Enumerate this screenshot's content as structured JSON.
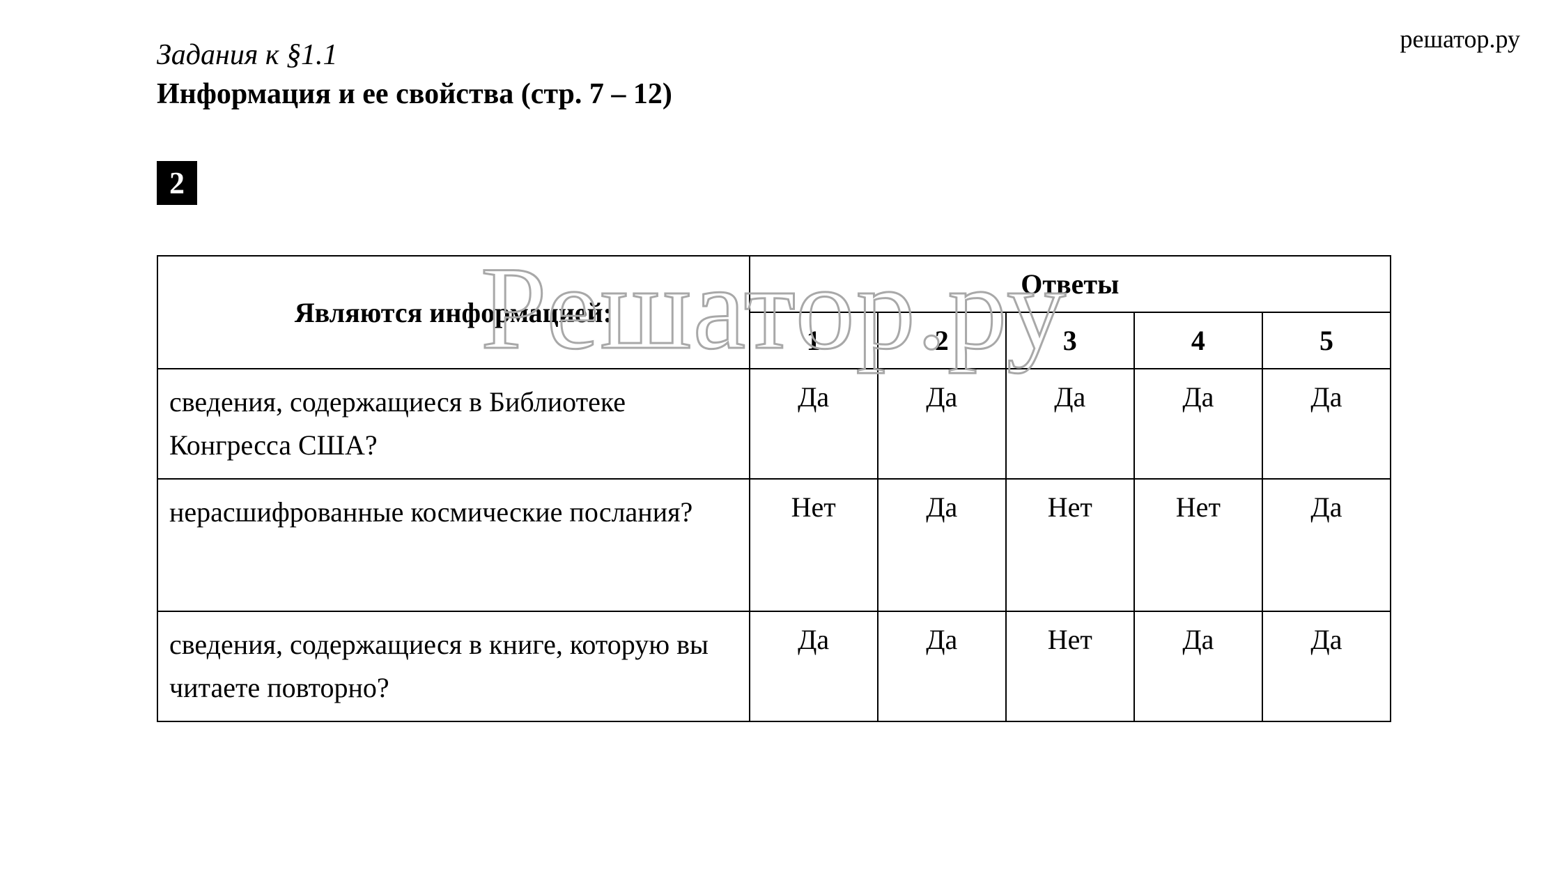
{
  "watermark_top": "решатор.ру",
  "watermark_center": "Решатор.ру",
  "section_title": "Задания к §1.1",
  "main_title": "Информация и ее свойства (стр. 7 – 12)",
  "task_number": "2",
  "table": {
    "header_question": "Являются информацией:",
    "header_answers": "Ответы",
    "columns": [
      "1",
      "2",
      "3",
      "4",
      "5"
    ],
    "rows": [
      {
        "question": "сведения, содержащиеся в Библиотеке Конгресса США?",
        "answers": [
          "Да",
          "Да",
          "Да",
          "Да",
          "Да"
        ]
      },
      {
        "question": "нерасшифрованные космические послания?",
        "answers": [
          "Нет",
          "Да",
          "Нет",
          "Нет",
          "Да"
        ]
      },
      {
        "question": "сведения, содержащиеся в книге, которую вы читаете повторно?",
        "answers": [
          "Да",
          "Да",
          "Нет",
          "Да",
          "Да"
        ]
      }
    ]
  },
  "styles": {
    "background_color": "#ffffff",
    "text_color": "#000000",
    "border_color": "#000000",
    "watermark_stroke_color": "#a8a8a8",
    "task_badge_bg": "#000000",
    "task_badge_fg": "#ffffff",
    "body_font_size": 40,
    "title_font_size": 42,
    "watermark_top_font_size": 36,
    "watermark_center_font_size": 170
  }
}
